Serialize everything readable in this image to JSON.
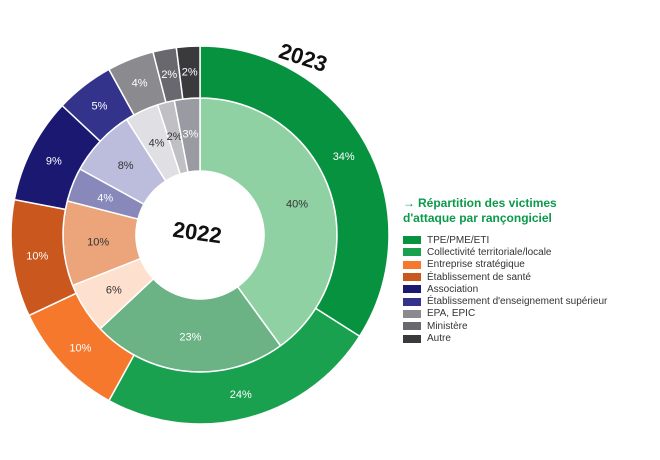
{
  "legend": {
    "arrow": "→",
    "title_line1": "Répartition des victimes",
    "title_line2": "d'attaque par rançongiciel"
  },
  "chart_data": {
    "type": "pie",
    "subtype": "nested-donut",
    "categories": [
      "TPE/PME/ETI",
      "Collectivité territoriale/locale",
      "Entreprise stratégique",
      "Établissement de santé",
      "Association",
      "Établissement d'enseignement supérieur",
      "EPA, EPIC",
      "Ministère",
      "Autre"
    ],
    "series": [
      {
        "name": "2022",
        "ring": "inner",
        "values": [
          40,
          23,
          6,
          10,
          4,
          8,
          4,
          2,
          3
        ],
        "colors": [
          "#8fd1a2",
          "#6bb385",
          "#fde0cd",
          "#eca47a",
          "#8888bb",
          "#bcbcdc",
          "#e0e0e4",
          "#c0c0c4",
          "#9a9aa2"
        ],
        "labels": [
          "40%",
          "23%",
          "6%",
          "10%",
          "4%",
          "8%",
          "4%",
          "2%",
          "3%"
        ]
      },
      {
        "name": "2023",
        "ring": "outer",
        "values": [
          34,
          24,
          10,
          10,
          9,
          5,
          4,
          2,
          2
        ],
        "colors": [
          "#07923f",
          "#1aa14f",
          "#f5782c",
          "#c9571e",
          "#1a1871",
          "#33338c",
          "#8a8a8f",
          "#68686e",
          "#3a3a3d"
        ],
        "labels": [
          "34%",
          "24%",
          "10%",
          "10%",
          "9%",
          "5%",
          "4%",
          "2%",
          "2%"
        ]
      }
    ],
    "legend_colors": [
      "#07923f",
      "#1aa14f",
      "#f5782c",
      "#c9571e",
      "#1a1871",
      "#33338c",
      "#8a8a8f",
      "#68686e",
      "#3a3a3d"
    ]
  }
}
